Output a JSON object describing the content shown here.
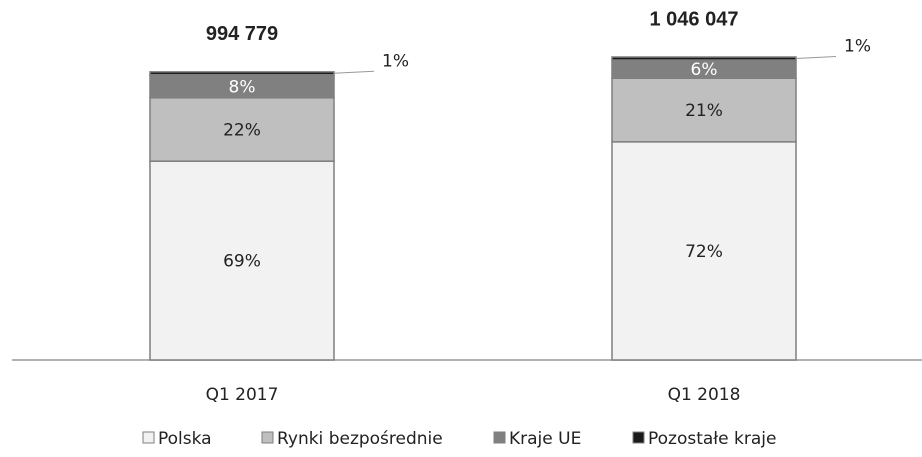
{
  "chart_data": {
    "type": "stacked_bar",
    "categories": [
      "Q1 2017",
      "Q1 2018"
    ],
    "totals": {
      "values": [
        994779,
        1046047
      ],
      "value_labels": [
        "994 779",
        "1 046 047"
      ]
    },
    "series": [
      {
        "name": "Polska",
        "color": "#f2f2f2",
        "values": [
          69,
          72
        ],
        "value_labels": [
          "69%",
          "72%"
        ]
      },
      {
        "name": "Rynki bezpośrednie",
        "color": "#bfbfbf",
        "values": [
          22,
          21
        ],
        "value_labels": [
          "22%",
          "21%"
        ]
      },
      {
        "name": "Kraje UE",
        "color": "#808080",
        "values": [
          8,
          6
        ],
        "value_labels": [
          "8%",
          "6%"
        ]
      },
      {
        "name": "Pozostałe kraje",
        "color": "#1a1a1a",
        "values": [
          1,
          1
        ],
        "value_labels": [
          "1%",
          "1%"
        ]
      }
    ],
    "legend": "bottom"
  }
}
